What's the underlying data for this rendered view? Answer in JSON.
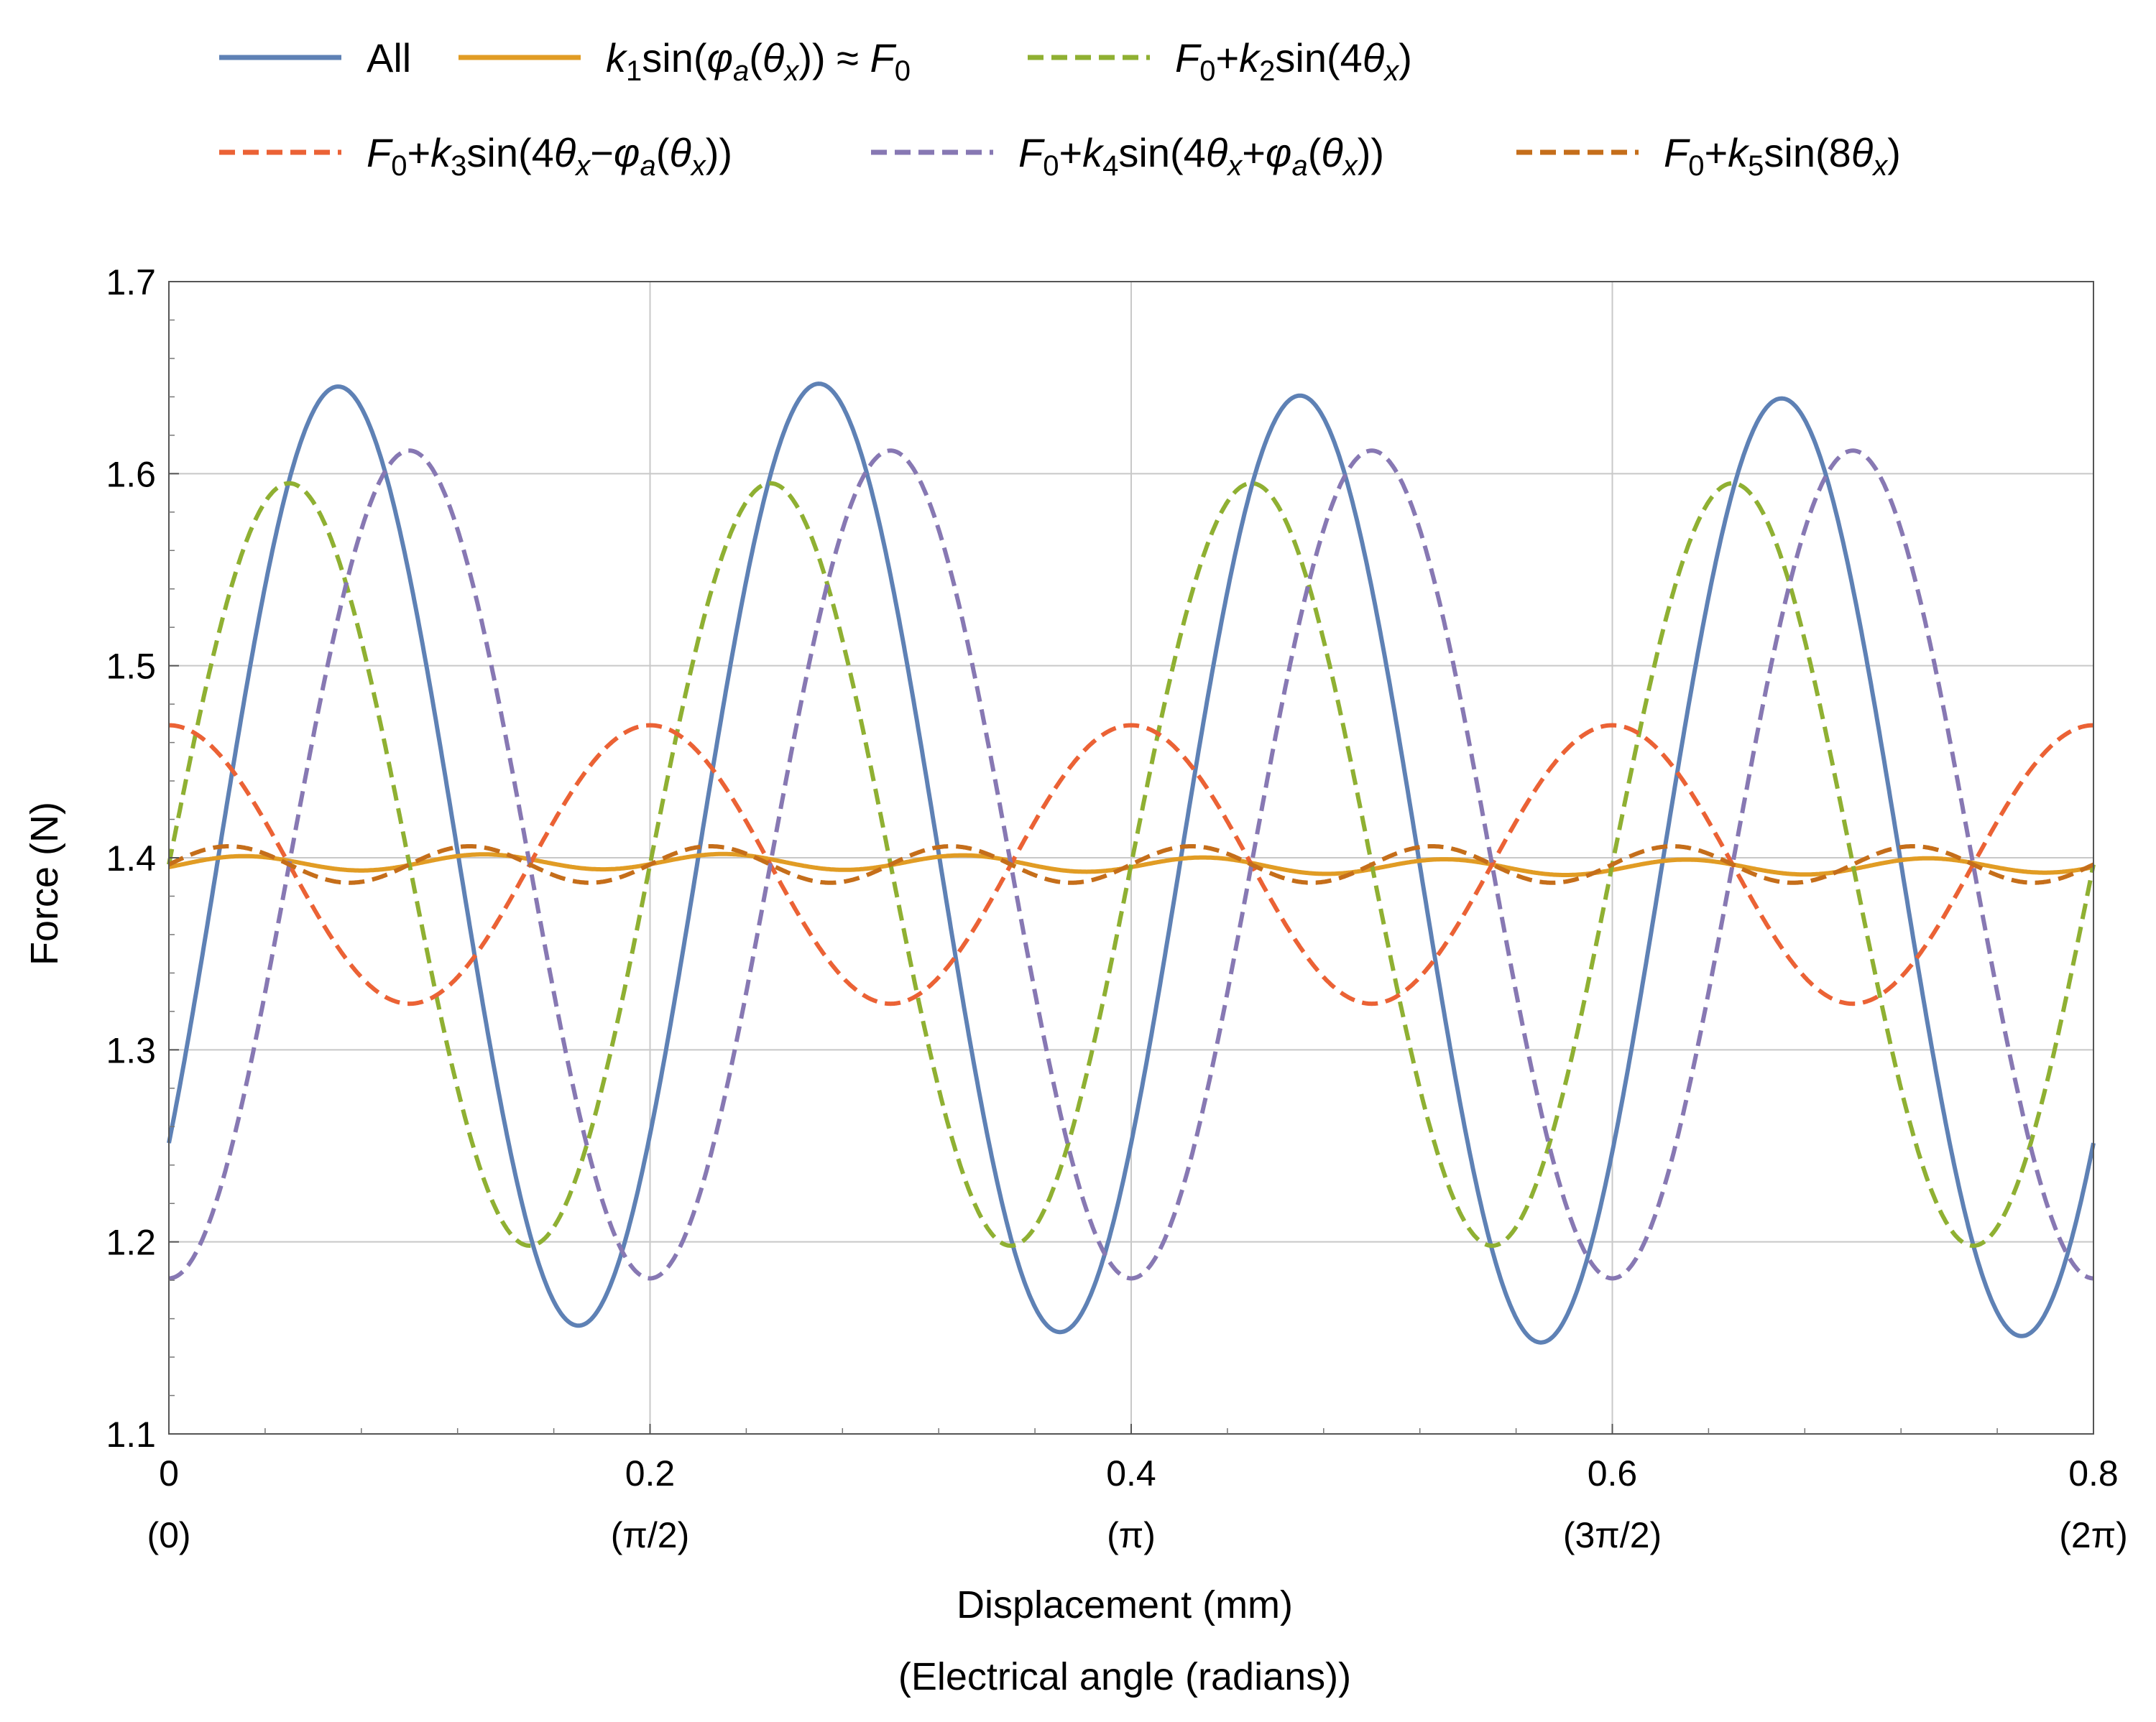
{
  "chart_data": {
    "type": "line",
    "title": "",
    "xlabel": "Displacement (mm)",
    "xlabel_secondary": "(Electrical angle (radians))",
    "ylabel": "Force (N)",
    "xlim": [
      0,
      0.8
    ],
    "ylim": [
      1.1,
      1.7
    ],
    "grid": true,
    "legend_position": "top",
    "x_ticks": [
      {
        "value": 0,
        "label": "0",
        "sublabel": "(0)"
      },
      {
        "value": 0.2,
        "label": "0.2",
        "sublabel": "(π/2)"
      },
      {
        "value": 0.4,
        "label": "0.4",
        "sublabel": "(π)"
      },
      {
        "value": 0.6,
        "label": "0.6",
        "sublabel": "(3π/2)"
      },
      {
        "value": 0.8,
        "label": "0.8",
        "sublabel": "(2π)"
      }
    ],
    "y_ticks": [
      {
        "value": 1.1,
        "label": "1.1"
      },
      {
        "value": 1.2,
        "label": "1.2"
      },
      {
        "value": 1.3,
        "label": "1.3"
      },
      {
        "value": 1.4,
        "label": "1.4"
      },
      {
        "value": 1.5,
        "label": "1.5"
      },
      {
        "value": 1.6,
        "label": "1.6"
      },
      {
        "value": 1.7,
        "label": "1.7"
      }
    ],
    "x_period_mm": 0.8,
    "series": [
      {
        "id": "all",
        "name": "All",
        "legend": [
          {
            "t": "All"
          }
        ],
        "color": "#5E81B5",
        "dash": "solid",
        "offset": 1.3975,
        "components": [
          {
            "amplitude": 0.2455,
            "harmonic": 4,
            "phase_deg": -36.5
          },
          {
            "amplitude": 0.0045,
            "harmonic": 1,
            "phase_deg": 0
          }
        ],
        "extrema_observed": {
          "max": 1.643,
          "min": 1.152
        }
      },
      {
        "id": "k1",
        "name": "k1sin(φa(θx)) ≈ F0",
        "legend": [
          {
            "t": "k",
            "i": true
          },
          {
            "t": "1",
            "sub": true
          },
          {
            "t": "sin("
          },
          {
            "t": "φ",
            "i": true
          },
          {
            "t": "a",
            "sub": true,
            "i": true
          },
          {
            "t": "("
          },
          {
            "t": "θ",
            "i": true
          },
          {
            "t": "x",
            "sub": true,
            "i": true
          },
          {
            "t": ")) ≈ "
          },
          {
            "t": "F",
            "i": true
          },
          {
            "t": "0",
            "sub": true
          }
        ],
        "color": "#E19C24",
        "dash": "solid",
        "offset": 1.3965,
        "components": [
          {
            "amplitude": 0.004,
            "harmonic": 8,
            "phase_deg": -20
          },
          {
            "amplitude": 0.0015,
            "harmonic": 1,
            "phase_deg": 0
          }
        ]
      },
      {
        "id": "k2",
        "name": "F0+k2sin(4θx)",
        "legend": [
          {
            "t": "F",
            "i": true
          },
          {
            "t": "0",
            "sub": true
          },
          {
            "t": "+"
          },
          {
            "t": "k",
            "i": true
          },
          {
            "t": "2",
            "sub": true
          },
          {
            "t": "sin(4"
          },
          {
            "t": "θ",
            "i": true
          },
          {
            "t": "x",
            "sub": true,
            "i": true
          },
          {
            "t": ")"
          }
        ],
        "color": "#8FB032",
        "dash": "dashed",
        "offset": 1.3965,
        "components": [
          {
            "amplitude": 0.1985,
            "harmonic": 4,
            "phase_deg": 0
          }
        ],
        "extrema_observed": {
          "max": 1.595,
          "min": 1.198
        }
      },
      {
        "id": "k3",
        "name": "F0+k3sin(4θx−φa(θx))",
        "legend": [
          {
            "t": "F",
            "i": true
          },
          {
            "t": "0",
            "sub": true
          },
          {
            "t": "+"
          },
          {
            "t": "k",
            "i": true
          },
          {
            "t": "3",
            "sub": true
          },
          {
            "t": "sin(4"
          },
          {
            "t": "θ",
            "i": true
          },
          {
            "t": "x",
            "sub": true,
            "i": true
          },
          {
            "t": "−"
          },
          {
            "t": "φ",
            "i": true
          },
          {
            "t": "a",
            "sub": true,
            "i": true
          },
          {
            "t": "("
          },
          {
            "t": "θ",
            "i": true
          },
          {
            "t": "x",
            "sub": true,
            "i": true
          },
          {
            "t": "))"
          }
        ],
        "color": "#EB6235",
        "dash": "dashed",
        "offset": 1.3965,
        "components": [
          {
            "amplitude": 0.0725,
            "harmonic": 4,
            "phase_deg": 90
          }
        ],
        "extrema_observed": {
          "max": 1.469,
          "min": 1.324
        }
      },
      {
        "id": "k4",
        "name": "F0+k4sin(4θx+φa(θx))",
        "legend": [
          {
            "t": "F",
            "i": true
          },
          {
            "t": "0",
            "sub": true
          },
          {
            "t": "+"
          },
          {
            "t": "k",
            "i": true
          },
          {
            "t": "4",
            "sub": true
          },
          {
            "t": "sin(4"
          },
          {
            "t": "θ",
            "i": true
          },
          {
            "t": "x",
            "sub": true,
            "i": true
          },
          {
            "t": "+"
          },
          {
            "t": "φ",
            "i": true
          },
          {
            "t": "a",
            "sub": true,
            "i": true
          },
          {
            "t": "("
          },
          {
            "t": "θ",
            "i": true
          },
          {
            "t": "x",
            "sub": true,
            "i": true
          },
          {
            "t": "))"
          }
        ],
        "color": "#8778B3",
        "dash": "dashed",
        "offset": 1.3965,
        "components": [
          {
            "amplitude": 0.2155,
            "harmonic": 4,
            "phase_deg": -90
          }
        ],
        "extrema_observed": {
          "max": 1.612,
          "min": 1.181
        }
      },
      {
        "id": "k5",
        "name": "F0+k5sin(8θx)",
        "legend": [
          {
            "t": "F",
            "i": true
          },
          {
            "t": "0",
            "sub": true
          },
          {
            "t": "+"
          },
          {
            "t": "k",
            "i": true
          },
          {
            "t": "5",
            "sub": true
          },
          {
            "t": "sin(8"
          },
          {
            "t": "θ",
            "i": true
          },
          {
            "t": "x",
            "sub": true,
            "i": true
          },
          {
            "t": ")"
          }
        ],
        "color": "#C56E1A",
        "dash": "dashed",
        "offset": 1.3965,
        "components": [
          {
            "amplitude": 0.0095,
            "harmonic": 8,
            "phase_deg": 0
          }
        ]
      }
    ]
  }
}
